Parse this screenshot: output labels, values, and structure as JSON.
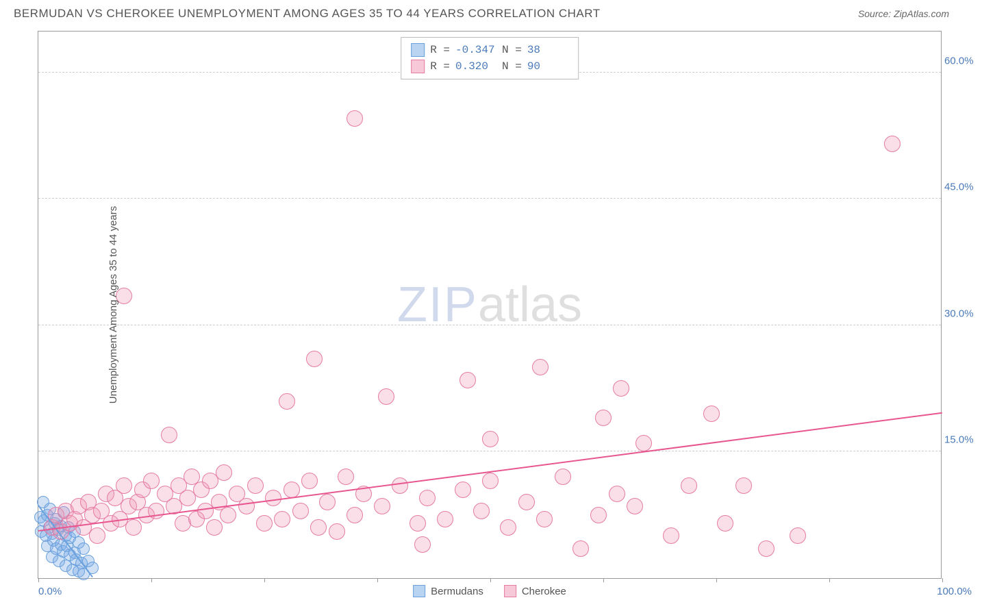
{
  "header": {
    "title": "BERMUDAN VS CHEROKEE UNEMPLOYMENT AMONG AGES 35 TO 44 YEARS CORRELATION CHART",
    "source": "Source: ZipAtlas.com"
  },
  "chart": {
    "type": "scatter",
    "y_axis_title": "Unemployment Among Ages 35 to 44 years",
    "xlim": [
      0,
      100
    ],
    "ylim": [
      0,
      65
    ],
    "x_axis": {
      "left_label": "0.0%",
      "right_label": "100.0%",
      "ticks": [
        0,
        12.5,
        25,
        37.5,
        50,
        62.5,
        75,
        87.5,
        100
      ]
    },
    "y_ticks": [
      {
        "v": 15.0,
        "label": "15.0%"
      },
      {
        "v": 30.0,
        "label": "30.0%"
      },
      {
        "v": 45.0,
        "label": "45.0%"
      },
      {
        "v": 60.0,
        "label": "60.0%"
      }
    ],
    "watermark": {
      "zip": "ZIP",
      "atlas": "atlas"
    },
    "series": [
      {
        "name": "Bermudans",
        "fill": "rgba(120,170,230,0.35)",
        "stroke": "#6aa0dc",
        "swatch_fill": "#b8d4f0",
        "swatch_border": "#6aa0dc",
        "radius": 9,
        "stats": {
          "R": "-0.347",
          "N": "38"
        },
        "trend": {
          "x1": 0,
          "y1": 8.5,
          "x2": 6,
          "y2": 0,
          "color": "#6aa0dc"
        },
        "points": [
          [
            0.2,
            7.2
          ],
          [
            0.3,
            5.5
          ],
          [
            0.5,
            9.0
          ],
          [
            0.6,
            6.8
          ],
          [
            0.8,
            5.0
          ],
          [
            1.0,
            7.5
          ],
          [
            1.0,
            3.8
          ],
          [
            1.2,
            6.0
          ],
          [
            1.3,
            8.2
          ],
          [
            1.5,
            5.3
          ],
          [
            1.5,
            2.5
          ],
          [
            1.7,
            4.5
          ],
          [
            1.8,
            6.5
          ],
          [
            2.0,
            3.5
          ],
          [
            2.0,
            7.0
          ],
          [
            2.2,
            5.8
          ],
          [
            2.3,
            2.0
          ],
          [
            2.5,
            4.0
          ],
          [
            2.5,
            6.2
          ],
          [
            2.7,
            3.2
          ],
          [
            2.8,
            7.8
          ],
          [
            3.0,
            5.0
          ],
          [
            3.0,
            1.5
          ],
          [
            3.2,
            3.8
          ],
          [
            3.3,
            6.0
          ],
          [
            3.5,
            2.8
          ],
          [
            3.5,
            4.8
          ],
          [
            3.8,
            1.0
          ],
          [
            4.0,
            3.0
          ],
          [
            4.0,
            5.5
          ],
          [
            4.2,
            2.2
          ],
          [
            4.5,
            0.8
          ],
          [
            4.5,
            4.2
          ],
          [
            4.8,
            1.8
          ],
          [
            5.0,
            3.5
          ],
          [
            5.0,
            0.5
          ],
          [
            5.5,
            2.0
          ],
          [
            6.0,
            1.2
          ]
        ]
      },
      {
        "name": "Cherokee",
        "fill": "rgba(240,150,180,0.3)",
        "stroke": "#e57ba3",
        "swatch_fill": "#f7c8d8",
        "swatch_border": "#e57ba3",
        "radius": 12,
        "stats": {
          "R": "0.320",
          "N": "90"
        },
        "trend": {
          "x1": 0,
          "y1": 5.5,
          "x2": 100,
          "y2": 19.5,
          "color": "#e8568f"
        },
        "points": [
          [
            1.5,
            6.0
          ],
          [
            2.0,
            7.5
          ],
          [
            2.5,
            5.5
          ],
          [
            3.0,
            8.0
          ],
          [
            3.5,
            6.5
          ],
          [
            4.0,
            7.0
          ],
          [
            4.5,
            8.5
          ],
          [
            5.0,
            6.0
          ],
          [
            5.5,
            9.0
          ],
          [
            6.0,
            7.5
          ],
          [
            6.5,
            5.0
          ],
          [
            7.0,
            8.0
          ],
          [
            7.5,
            10.0
          ],
          [
            8.0,
            6.5
          ],
          [
            8.5,
            9.5
          ],
          [
            9.0,
            7.0
          ],
          [
            9.5,
            11.0
          ],
          [
            10.0,
            8.5
          ],
          [
            10.5,
            6.0
          ],
          [
            11.0,
            9.0
          ],
          [
            11.5,
            10.5
          ],
          [
            12.0,
            7.5
          ],
          [
            12.5,
            11.5
          ],
          [
            13.0,
            8.0
          ],
          [
            9.5,
            33.5
          ],
          [
            14.0,
            10.0
          ],
          [
            14.5,
            17.0
          ],
          [
            15.0,
            8.5
          ],
          [
            15.5,
            11.0
          ],
          [
            16.0,
            6.5
          ],
          [
            16.5,
            9.5
          ],
          [
            17.0,
            12.0
          ],
          [
            17.5,
            7.0
          ],
          [
            18.0,
            10.5
          ],
          [
            18.5,
            8.0
          ],
          [
            19.0,
            11.5
          ],
          [
            19.5,
            6.0
          ],
          [
            20.0,
            9.0
          ],
          [
            20.5,
            12.5
          ],
          [
            21.0,
            7.5
          ],
          [
            22.0,
            10.0
          ],
          [
            23.0,
            8.5
          ],
          [
            24.0,
            11.0
          ],
          [
            25.0,
            6.5
          ],
          [
            26.0,
            9.5
          ],
          [
            27.0,
            7.0
          ],
          [
            27.5,
            21.0
          ],
          [
            28.0,
            10.5
          ],
          [
            29.0,
            8.0
          ],
          [
            30.0,
            11.5
          ],
          [
            30.5,
            26.0
          ],
          [
            31.0,
            6.0
          ],
          [
            32.0,
            9.0
          ],
          [
            33.0,
            5.5
          ],
          [
            34.0,
            12.0
          ],
          [
            35.0,
            7.5
          ],
          [
            36.0,
            10.0
          ],
          [
            35.0,
            54.5
          ],
          [
            38.0,
            8.5
          ],
          [
            38.5,
            21.5
          ],
          [
            40.0,
            11.0
          ],
          [
            42.0,
            6.5
          ],
          [
            42.5,
            4.0
          ],
          [
            43.0,
            9.5
          ],
          [
            45.0,
            7.0
          ],
          [
            47.0,
            10.5
          ],
          [
            47.5,
            23.5
          ],
          [
            49.0,
            8.0
          ],
          [
            50.0,
            11.5
          ],
          [
            50.0,
            16.5
          ],
          [
            52.0,
            6.0
          ],
          [
            54.0,
            9.0
          ],
          [
            55.5,
            25.0
          ],
          [
            56.0,
            7.0
          ],
          [
            58.0,
            12.0
          ],
          [
            60.0,
            3.5
          ],
          [
            62.0,
            7.5
          ],
          [
            62.5,
            19.0
          ],
          [
            64.0,
            10.0
          ],
          [
            64.5,
            22.5
          ],
          [
            66.0,
            8.5
          ],
          [
            67.0,
            16.0
          ],
          [
            70.0,
            5.0
          ],
          [
            72.0,
            11.0
          ],
          [
            74.5,
            19.5
          ],
          [
            76.0,
            6.5
          ],
          [
            78.0,
            11.0
          ],
          [
            80.5,
            3.5
          ],
          [
            84.0,
            5.0
          ],
          [
            94.5,
            51.5
          ]
        ]
      }
    ],
    "legend_labels": {
      "series1": "Bermudans",
      "series2": "Cherokee"
    }
  }
}
